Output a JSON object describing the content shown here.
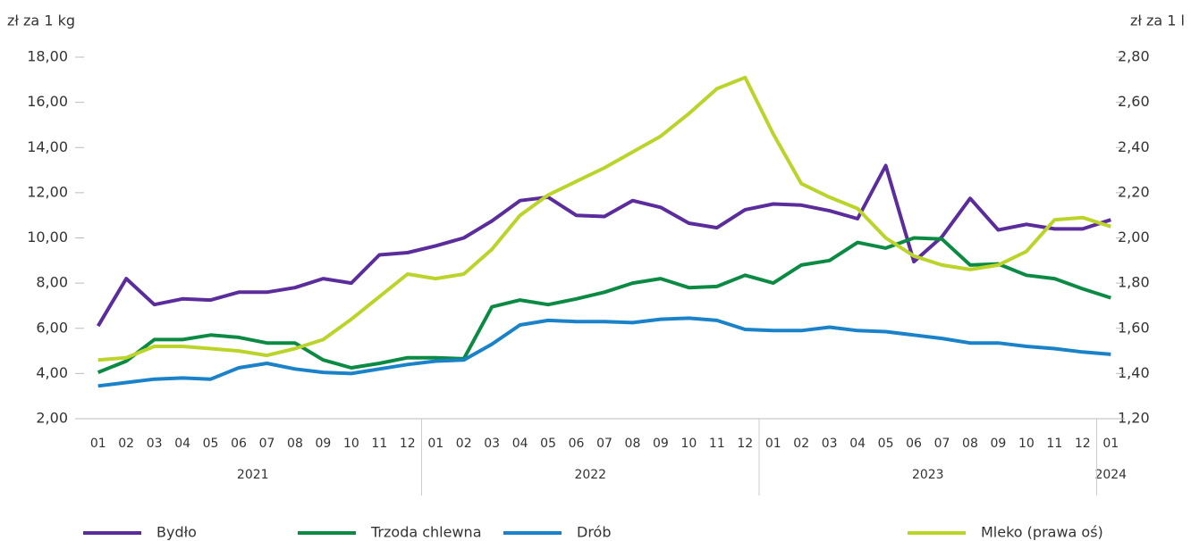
{
  "chart_data": {
    "type": "line",
    "y_axis_label": "zł za 1 kg",
    "y2_axis_label": "zł za 1 l",
    "categories": [
      "01",
      "02",
      "03",
      "04",
      "05",
      "06",
      "07",
      "08",
      "09",
      "10",
      "11",
      "12",
      "01",
      "02",
      "03",
      "04",
      "05",
      "06",
      "07",
      "08",
      "09",
      "10",
      "11",
      "12",
      "01",
      "02",
      "03",
      "04",
      "05",
      "06",
      "07",
      "08",
      "09",
      "10",
      "11",
      "12",
      "01"
    ],
    "category_groups": [
      {
        "label": "2021",
        "count": 12
      },
      {
        "label": "2022",
        "count": 12
      },
      {
        "label": "2023",
        "count": 12
      },
      {
        "label": "2024",
        "count": 1
      }
    ],
    "ylim": [
      2,
      18
    ],
    "yticks": [
      {
        "value": 2,
        "label": "2,00"
      },
      {
        "value": 4,
        "label": "4,00"
      },
      {
        "value": 6,
        "label": "6,00"
      },
      {
        "value": 8,
        "label": "8,00"
      },
      {
        "value": 10,
        "label": "10,00"
      },
      {
        "value": 12,
        "label": "12,00"
      },
      {
        "value": 14,
        "label": "14,00"
      },
      {
        "value": 16,
        "label": "16,00"
      },
      {
        "value": 18,
        "label": "18,00"
      }
    ],
    "y2lim": [
      1.2,
      2.8
    ],
    "y2ticks": [
      {
        "value": 1.2,
        "label": "1,20"
      },
      {
        "value": 1.4,
        "label": "1,40"
      },
      {
        "value": 1.6,
        "label": "1,60"
      },
      {
        "value": 1.8,
        "label": "1,80"
      },
      {
        "value": 2.0,
        "label": "2,00"
      },
      {
        "value": 2.2,
        "label": "2,20"
      },
      {
        "value": 2.4,
        "label": "2,40"
      },
      {
        "value": 2.6,
        "label": "2,60"
      },
      {
        "value": 2.8,
        "label": "2,80"
      }
    ],
    "series": [
      {
        "name": "Bydło",
        "color": "#5b2c9c",
        "values": [
          6.1,
          8.2,
          7.05,
          7.3,
          7.25,
          7.6,
          7.6,
          7.8,
          8.2,
          8.0,
          9.25,
          9.35,
          9.65,
          10.0,
          10.75,
          11.65,
          11.8,
          11.0,
          10.95,
          11.65,
          11.35,
          10.65,
          10.45,
          11.25,
          11.5,
          11.45,
          11.2,
          10.85,
          13.2,
          8.95,
          10.05,
          11.75,
          10.35,
          10.6,
          10.4,
          10.4,
          10.8
        ]
      },
      {
        "name": "Trzoda chlewna",
        "color": "#0b8a43",
        "values": [
          4.05,
          4.55,
          5.5,
          5.5,
          5.7,
          5.6,
          5.35,
          5.35,
          4.6,
          4.25,
          4.45,
          4.7,
          4.7,
          4.65,
          6.95,
          7.25,
          7.05,
          7.3,
          7.6,
          8.0,
          8.2,
          7.8,
          7.85,
          8.35,
          8.0,
          8.8,
          9.0,
          9.8,
          9.55,
          10.0,
          9.95,
          8.8,
          8.85,
          8.35,
          8.2,
          7.75,
          7.35
        ]
      },
      {
        "name": "Drób",
        "color": "#1a82c8",
        "values": [
          3.45,
          3.6,
          3.75,
          3.8,
          3.75,
          4.25,
          4.45,
          4.2,
          4.05,
          4.0,
          4.2,
          4.4,
          4.55,
          4.6,
          5.3,
          6.15,
          6.35,
          6.3,
          6.3,
          6.25,
          6.4,
          6.45,
          6.35,
          5.95,
          5.9,
          5.9,
          6.05,
          5.9,
          5.85,
          5.7,
          5.55,
          5.35,
          5.35,
          5.2,
          5.1,
          4.95,
          4.85
        ]
      },
      {
        "name": "Mleko (prawa oś)",
        "color": "#bcd42a",
        "axis": "y2",
        "values": [
          1.46,
          1.47,
          1.52,
          1.52,
          1.51,
          1.5,
          1.48,
          1.51,
          1.55,
          1.64,
          1.74,
          1.84,
          1.82,
          1.84,
          1.95,
          2.1,
          2.19,
          2.25,
          2.31,
          2.38,
          2.45,
          2.55,
          2.66,
          2.71,
          2.46,
          2.24,
          2.18,
          2.13,
          2.0,
          1.92,
          1.88,
          1.86,
          1.88,
          1.94,
          2.08,
          2.09,
          2.05
        ]
      }
    ]
  }
}
